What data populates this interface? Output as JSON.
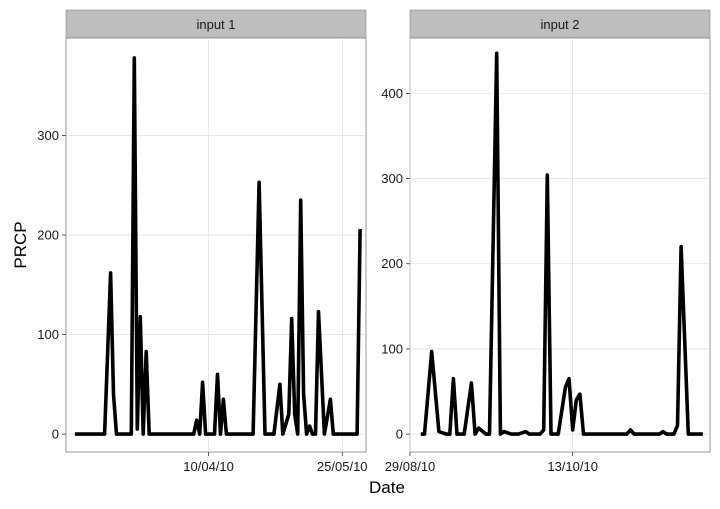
{
  "chart_data": [
    {
      "type": "line",
      "title": "input 1",
      "xlabel": "Date",
      "ylabel": "PRCP",
      "x_is_date": true,
      "xlim": [
        "2010-02-21",
        "2010-06-02"
      ],
      "ylim": [
        -18,
        398
      ],
      "xticks": [
        {
          "date": "2010-04-10",
          "label": "10/04/10"
        },
        {
          "date": "2010-05-25",
          "label": "25/05/10"
        }
      ],
      "yticks": [
        0,
        100,
        200,
        300
      ],
      "grid": true,
      "series": [
        {
          "color": "#000000",
          "points": [
            [
              "2010-02-24",
              0
            ],
            [
              "2010-03-06",
              0
            ],
            [
              "2010-03-08",
              162
            ],
            [
              "2010-03-09",
              40
            ],
            [
              "2010-03-10",
              0
            ],
            [
              "2010-03-15",
              0
            ],
            [
              "2010-03-16",
              378
            ],
            [
              "2010-03-17",
              5
            ],
            [
              "2010-03-18",
              118
            ],
            [
              "2010-03-19",
              0
            ],
            [
              "2010-03-20",
              83
            ],
            [
              "2010-03-21",
              0
            ],
            [
              "2010-04-05",
              0
            ],
            [
              "2010-04-06",
              14
            ],
            [
              "2010-04-07",
              0
            ],
            [
              "2010-04-08",
              52
            ],
            [
              "2010-04-09",
              0
            ],
            [
              "2010-04-12",
              0
            ],
            [
              "2010-04-13",
              60
            ],
            [
              "2010-04-14",
              0
            ],
            [
              "2010-04-15",
              35
            ],
            [
              "2010-04-16",
              0
            ],
            [
              "2010-04-25",
              0
            ],
            [
              "2010-04-27",
              253
            ],
            [
              "2010-04-29",
              0
            ],
            [
              "2010-05-02",
              0
            ],
            [
              "2010-05-04",
              50
            ],
            [
              "2010-05-05",
              0
            ],
            [
              "2010-05-07",
              20
            ],
            [
              "2010-05-08",
              116
            ],
            [
              "2010-05-09",
              20
            ],
            [
              "2010-05-10",
              0
            ],
            [
              "2010-05-11",
              235
            ],
            [
              "2010-05-12",
              40
            ],
            [
              "2010-05-13",
              0
            ],
            [
              "2010-05-14",
              8
            ],
            [
              "2010-05-15",
              0
            ],
            [
              "2010-05-16",
              0
            ],
            [
              "2010-05-17",
              123
            ],
            [
              "2010-05-19",
              0
            ],
            [
              "2010-05-21",
              35
            ],
            [
              "2010-05-22",
              0
            ],
            [
              "2010-05-30",
              0
            ],
            [
              "2010-05-31",
              206
            ]
          ]
        }
      ]
    },
    {
      "type": "line",
      "title": "input 2",
      "xlabel": "Date",
      "ylabel": "PRCP",
      "x_is_date": true,
      "xlim": [
        "2010-08-29",
        "2010-11-20"
      ],
      "ylim": [
        -21,
        465
      ],
      "xticks": [
        {
          "date": "2010-08-29",
          "label": "29/08/10"
        },
        {
          "date": "2010-10-13",
          "label": "13/10/10"
        }
      ],
      "yticks": [
        0,
        100,
        200,
        300,
        400
      ],
      "grid": true,
      "series": [
        {
          "color": "#000000",
          "points": [
            [
              "2010-09-01",
              0
            ],
            [
              "2010-09-02",
              0
            ],
            [
              "2010-09-04",
              97
            ],
            [
              "2010-09-06",
              3
            ],
            [
              "2010-09-08",
              0
            ],
            [
              "2010-09-09",
              0
            ],
            [
              "2010-09-10",
              65
            ],
            [
              "2010-09-11",
              0
            ],
            [
              "2010-09-13",
              0
            ],
            [
              "2010-09-15",
              60
            ],
            [
              "2010-09-16",
              0
            ],
            [
              "2010-09-17",
              7
            ],
            [
              "2010-09-19",
              0
            ],
            [
              "2010-09-20",
              0
            ],
            [
              "2010-09-22",
              447
            ],
            [
              "2010-09-23",
              0
            ],
            [
              "2010-09-24",
              3
            ],
            [
              "2010-09-26",
              0
            ],
            [
              "2010-09-28",
              0
            ],
            [
              "2010-09-30",
              3
            ],
            [
              "2010-10-01",
              0
            ],
            [
              "2010-10-04",
              0
            ],
            [
              "2010-10-05",
              5
            ],
            [
              "2010-10-06",
              304
            ],
            [
              "2010-10-07",
              0
            ],
            [
              "2010-10-09",
              0
            ],
            [
              "2010-10-11",
              55
            ],
            [
              "2010-10-12",
              65
            ],
            [
              "2010-10-13",
              5
            ],
            [
              "2010-10-14",
              40
            ],
            [
              "2010-10-15",
              47
            ],
            [
              "2010-10-16",
              0
            ],
            [
              "2010-10-28",
              0
            ],
            [
              "2010-10-29",
              5
            ],
            [
              "2010-10-30",
              0
            ],
            [
              "2010-11-06",
              0
            ],
            [
              "2010-11-07",
              3
            ],
            [
              "2010-11-08",
              0
            ],
            [
              "2010-11-10",
              0
            ],
            [
              "2010-11-11",
              10
            ],
            [
              "2010-11-12",
              220
            ],
            [
              "2010-11-14",
              0
            ],
            [
              "2010-11-18",
              0
            ]
          ]
        }
      ]
    }
  ]
}
